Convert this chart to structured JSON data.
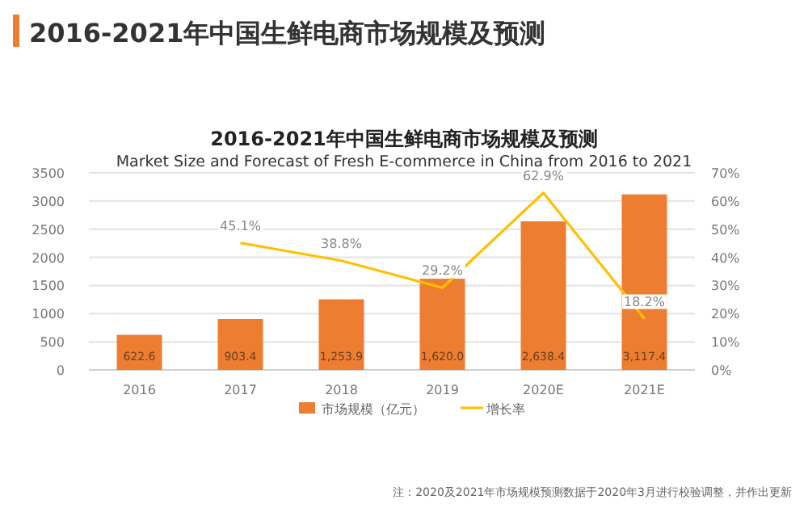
{
  "chart_data": {
    "type": "bar",
    "title": "2016-2021年中国生鲜电商市场规模及预测",
    "subtitle": "Market Size and Forecast of Fresh E-commerce  in China from 2016 to 2021",
    "categories": [
      "2016",
      "2017",
      "2018",
      "2019",
      "2020E",
      "2021E"
    ],
    "series": [
      {
        "name": "市场规模（亿元）",
        "color": "#ed7d31",
        "values": [
          622.6,
          903.4,
          1253.9,
          1620.0,
          2638.4,
          3117.4
        ],
        "value_labels": [
          "622.6",
          "903.4",
          "1,253.9",
          "1,620.0",
          "2,638.4",
          "3,117.4"
        ]
      },
      {
        "name": "增长率",
        "type": "line",
        "axis": "y2",
        "color": "#ffc000",
        "values": [
          null,
          45.1,
          38.8,
          29.2,
          62.9,
          18.2
        ],
        "value_labels": [
          null,
          "45.1%",
          "38.8%",
          "29.2%",
          "62.9%",
          "18.2%"
        ]
      }
    ],
    "ylim": [
      0,
      3500
    ],
    "yticks": [
      0,
      500,
      1000,
      1500,
      2000,
      2500,
      3000,
      3500
    ],
    "y2lim": [
      0,
      70
    ],
    "y2ticks": [
      {
        "value": 0,
        "label": "0%"
      },
      {
        "value": 10,
        "label": "10%"
      },
      {
        "value": 20,
        "label": "20%"
      },
      {
        "value": 30,
        "label": "30%"
      },
      {
        "value": 40,
        "label": "40%"
      },
      {
        "value": 50,
        "label": "50%"
      },
      {
        "value": 60,
        "label": "60%"
      },
      {
        "value": 70,
        "label": "70%"
      }
    ],
    "grid": "y",
    "legend": "bottom",
    "marker": "none",
    "line_style": "solid",
    "annotations": [
      "2016-2021年中国生鲜电商市场规模及预测",
      "注：2020及2021年市场规模预测数据于2020年3月进行校验调整，并作出更新"
    ]
  }
}
